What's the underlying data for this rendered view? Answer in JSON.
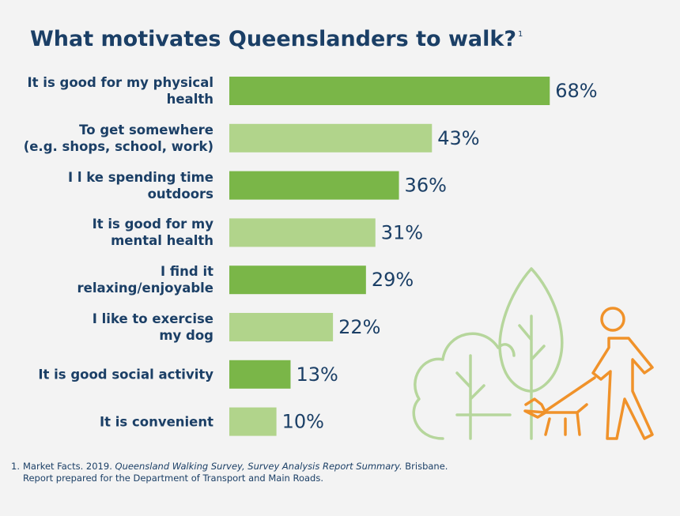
{
  "chart_data": {
    "type": "bar",
    "orientation": "horizontal",
    "title": "What motivates Queenslanders to walk?",
    "title_note": "1",
    "categories": [
      "It is good for my physical\nhealth",
      "To get somewhere\n(e.g. shops, school, work)",
      "I l ke spending time\noutdoors",
      "It is good for my\nmental health",
      "I find it\nrelaxing/enjoyable",
      "I like to exercise\nmy dog",
      "It is good social activity",
      "It is convenient"
    ],
    "values": [
      68,
      43,
      36,
      31,
      29,
      22,
      13,
      10
    ],
    "value_labels": [
      "68%",
      "43%",
      "36%",
      "31%",
      "29%",
      "22%",
      "13%",
      "10%"
    ],
    "colors": [
      "#7ab648",
      "#b1d48b",
      "#7ab648",
      "#b1d48b",
      "#7ab648",
      "#b1d48b",
      "#7ab648",
      "#b1d48b"
    ],
    "footnote": {
      "number": "1.",
      "source_start": "Market Facts. 2019.",
      "source_title": "Queensland Walking Survey, Survey Analysis Report Summary.",
      "source_end": "Brisbane.",
      "line2": "Report prepared for the Department of Transport and Main Roads."
    }
  }
}
